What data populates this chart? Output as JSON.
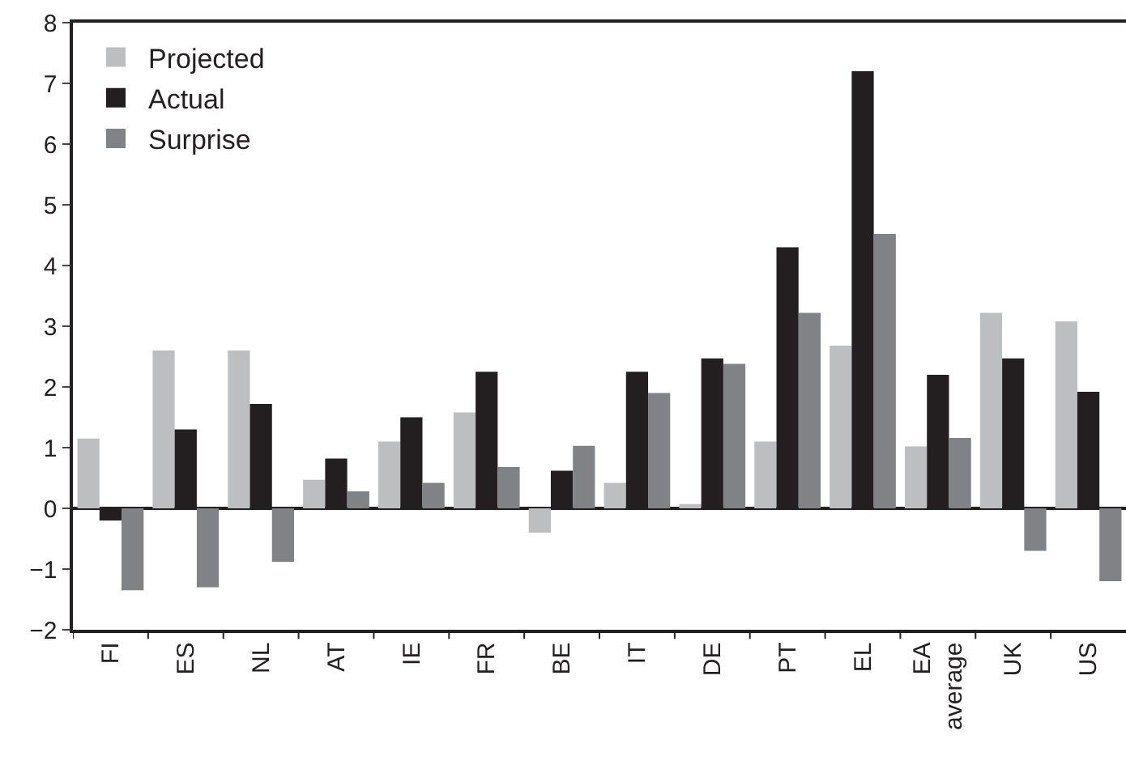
{
  "chart_data": {
    "type": "bar",
    "categories": [
      "FI",
      "ES",
      "NL",
      "AT",
      "IE",
      "FR",
      "BE",
      "IT",
      "DE",
      "PT",
      "EL",
      "EA\naverage",
      "UK",
      "US"
    ],
    "series": [
      {
        "name": "Projected",
        "color": "#bdbec0",
        "values": [
          1.15,
          2.6,
          2.6,
          0.47,
          1.1,
          1.58,
          -0.4,
          0.42,
          0.07,
          1.1,
          2.68,
          1.02,
          3.22,
          3.08
        ]
      },
      {
        "name": "Actual",
        "color": "#231f20",
        "values": [
          -0.2,
          1.3,
          1.72,
          0.82,
          1.5,
          2.25,
          0.62,
          2.25,
          2.47,
          4.3,
          7.2,
          2.2,
          2.47,
          1.92
        ]
      },
      {
        "name": "Surprise",
        "color": "#808285",
        "values": [
          -1.35,
          -1.3,
          -0.88,
          0.28,
          0.42,
          0.68,
          1.03,
          1.9,
          2.38,
          3.22,
          4.52,
          1.16,
          -0.7,
          -1.2
        ]
      }
    ],
    "ylim": [
      -2,
      8
    ],
    "yticks": [
      -2,
      -1,
      0,
      1,
      2,
      3,
      4,
      5,
      6,
      7,
      8
    ],
    "legend": "top left"
  }
}
